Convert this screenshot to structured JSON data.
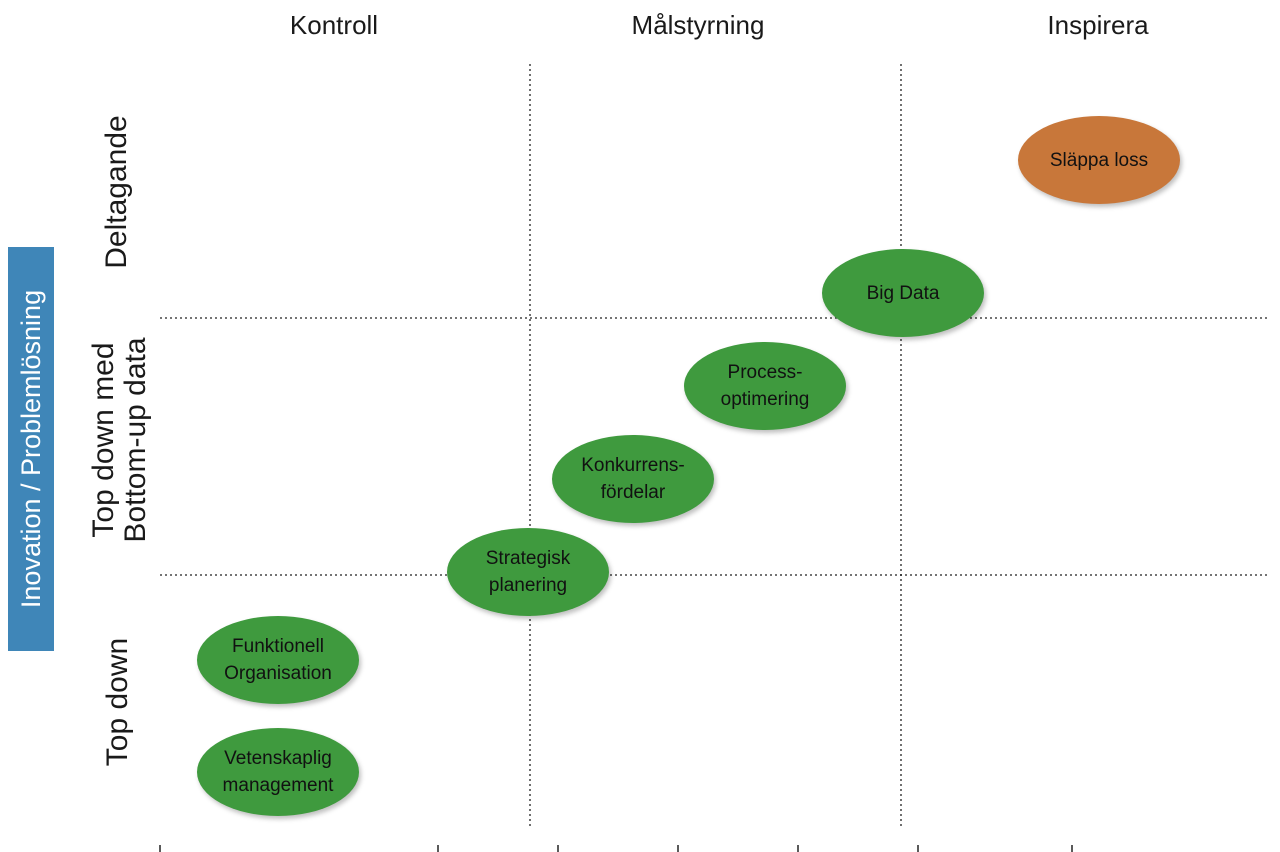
{
  "columns": [
    "Kontroll",
    "Målstyrning",
    "Inspirera"
  ],
  "rows": {
    "top": "Deltagande",
    "middle_line1": "Top down med",
    "middle_line2": "Bottom-up data",
    "bottom": "Top down"
  },
  "axis_label": "Inovation / Problemlösning",
  "nodes": [
    {
      "label": "Släppa loss",
      "color": "#c8773a"
    },
    {
      "label": "Big Data",
      "color": "#3f9a3e"
    },
    {
      "label": "Process-\noptimering",
      "color": "#3f9a3e"
    },
    {
      "label": "Konkurrens-\nfördelar",
      "color": "#3f9a3e"
    },
    {
      "label": "Strategisk\nplanering",
      "color": "#3f9a3e"
    },
    {
      "label": "Funktionell\nOrganisation",
      "color": "#3f9a3e"
    },
    {
      "label": "Vetenskaplig\nmanagement",
      "color": "#3f9a3e"
    }
  ]
}
